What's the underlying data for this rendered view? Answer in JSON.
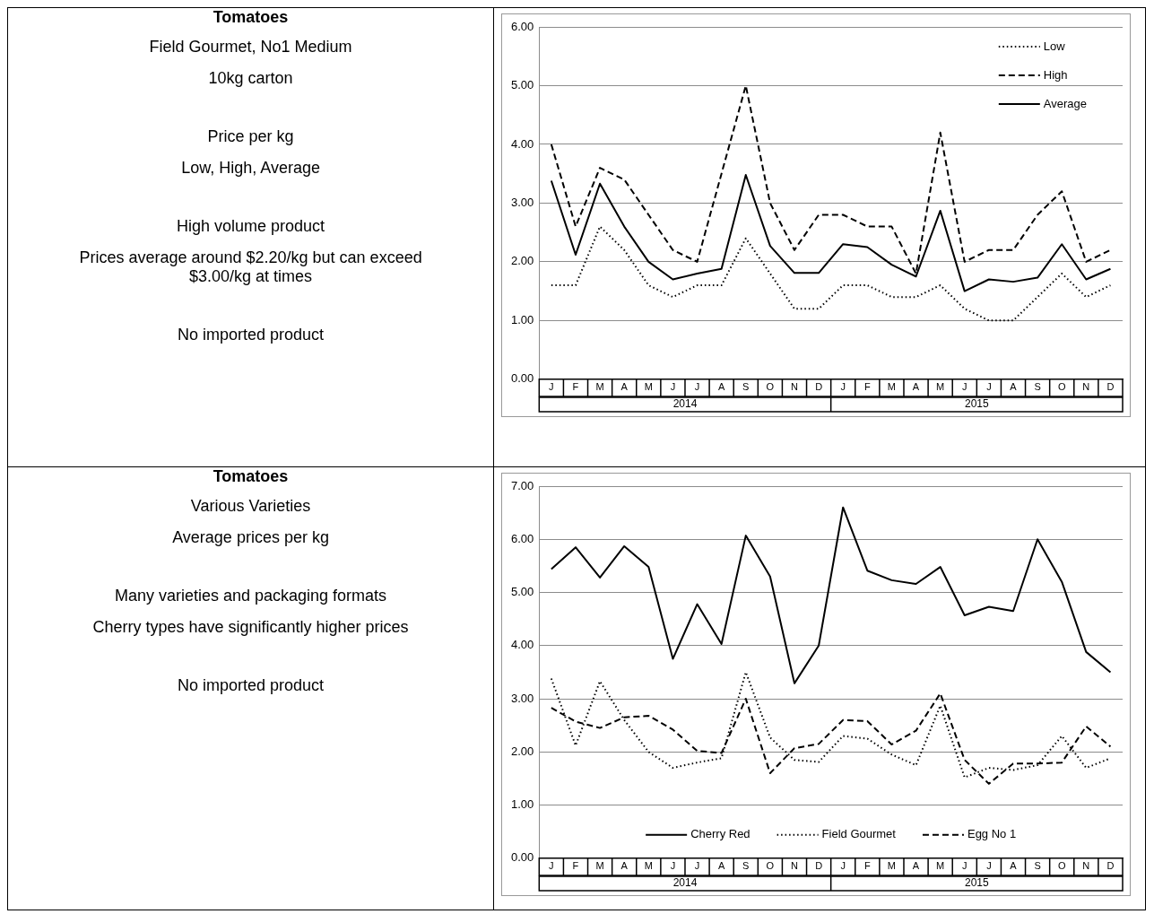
{
  "chart_data": [
    {
      "type": "other",
      "title": "Tomatoes",
      "annotations": [
        "Field Gourmet, No1 Medium",
        "10kg carton",
        "Price per kg",
        "Low, High, Average",
        "High volume product",
        "Prices average around $2.20/kg but can exceed $3.00/kg at times",
        "No imported product"
      ]
    },
    {
      "type": "line",
      "categories": [
        "J",
        "F",
        "M",
        "A",
        "M",
        "J",
        "J",
        "A",
        "S",
        "O",
        "N",
        "D",
        "J",
        "F",
        "M",
        "A",
        "M",
        "J",
        "J",
        "A",
        "S",
        "O",
        "N",
        "D"
      ],
      "annotations": [
        "2014",
        "2015"
      ],
      "ylim": [
        0,
        6
      ],
      "yticks": [
        {
          "value": 0,
          "label": "0.00"
        },
        {
          "value": 1,
          "label": "1.00"
        },
        {
          "value": 2,
          "label": "2.00"
        },
        {
          "value": 3,
          "label": "3.00"
        },
        {
          "value": 4,
          "label": "4.00"
        },
        {
          "value": 5,
          "label": "5.00"
        },
        {
          "value": 6,
          "label": "6.00"
        }
      ],
      "grid": "y",
      "legend": "top right",
      "series": [
        {
          "name": "Low",
          "color": "#000000",
          "line_style": "dotted",
          "values": [
            1.6,
            1.6,
            2.6,
            2.2,
            1.6,
            1.4,
            1.6,
            1.6,
            2.4,
            1.8,
            1.2,
            1.2,
            1.6,
            1.6,
            1.4,
            1.4,
            1.6,
            1.2,
            1.0,
            1.0,
            1.4,
            1.8,
            1.4,
            1.6
          ]
        },
        {
          "name": "High",
          "color": "#000000",
          "line_style": "dashed",
          "values": [
            4.0,
            2.6,
            3.6,
            3.4,
            2.8,
            2.2,
            2.0,
            3.5,
            5.0,
            3.0,
            2.2,
            2.8,
            2.8,
            2.6,
            2.6,
            1.8,
            4.2,
            2.0,
            2.2,
            2.2,
            2.8,
            3.2,
            2.0,
            2.2
          ]
        },
        {
          "name": "Average",
          "color": "#000000",
          "line_style": "solid",
          "values": [
            3.38,
            2.12,
            3.33,
            2.6,
            2.0,
            1.7,
            1.8,
            1.88,
            3.48,
            2.27,
            1.81,
            1.81,
            2.3,
            2.25,
            1.95,
            1.75,
            2.87,
            1.5,
            1.7,
            1.66,
            1.73,
            2.3,
            1.7,
            1.88
          ]
        }
      ]
    },
    {
      "type": "other",
      "title": "Tomatoes",
      "annotations": [
        "Various Varieties",
        "Average prices per kg",
        "Many varieties and packaging formats",
        "Cherry types have significantly higher prices",
        "No imported product"
      ]
    },
    {
      "type": "line",
      "categories": [
        "J",
        "F",
        "M",
        "A",
        "M",
        "J",
        "J",
        "A",
        "S",
        "O",
        "N",
        "D",
        "J",
        "F",
        "M",
        "A",
        "M",
        "J",
        "J",
        "A",
        "S",
        "O",
        "N",
        "D"
      ],
      "annotations": [
        "2014",
        "2015"
      ],
      "ylim": [
        0,
        7
      ],
      "yticks": [
        {
          "value": 0,
          "label": "0.00"
        },
        {
          "value": 1,
          "label": "1.00"
        },
        {
          "value": 2,
          "label": "2.00"
        },
        {
          "value": 3,
          "label": "3.00"
        },
        {
          "value": 4,
          "label": "4.00"
        },
        {
          "value": 5,
          "label": "5.00"
        },
        {
          "value": 6,
          "label": "6.00"
        },
        {
          "value": 7,
          "label": "7.00"
        }
      ],
      "grid": "y",
      "legend": "bottom",
      "series": [
        {
          "name": "Cherry Red",
          "color": "#000000",
          "line_style": "solid",
          "values": [
            5.44,
            5.85,
            5.28,
            5.87,
            5.48,
            3.75,
            4.78,
            4.03,
            6.07,
            5.3,
            3.29,
            4.0,
            6.6,
            5.41,
            5.23,
            5.16,
            5.48,
            4.57,
            4.73,
            4.65,
            6.0,
            5.2,
            3.88,
            3.5
          ]
        },
        {
          "name": "Field Gourmet",
          "color": "#000000",
          "line_style": "dotted",
          "values": [
            3.38,
            2.12,
            3.33,
            2.6,
            2.0,
            1.7,
            1.8,
            1.88,
            3.5,
            2.27,
            1.85,
            1.81,
            2.3,
            2.25,
            1.95,
            1.75,
            2.87,
            1.52,
            1.7,
            1.66,
            1.75,
            2.3,
            1.7,
            1.88
          ]
        },
        {
          "name": "Egg No 1",
          "color": "#000000",
          "line_style": "dashed",
          "values": [
            2.83,
            2.57,
            2.45,
            2.65,
            2.68,
            2.42,
            2.02,
            1.98,
            3.0,
            1.6,
            2.07,
            2.15,
            2.6,
            2.58,
            2.14,
            2.4,
            3.1,
            1.85,
            1.4,
            1.78,
            1.78,
            1.8,
            2.48,
            2.1
          ]
        }
      ]
    }
  ]
}
